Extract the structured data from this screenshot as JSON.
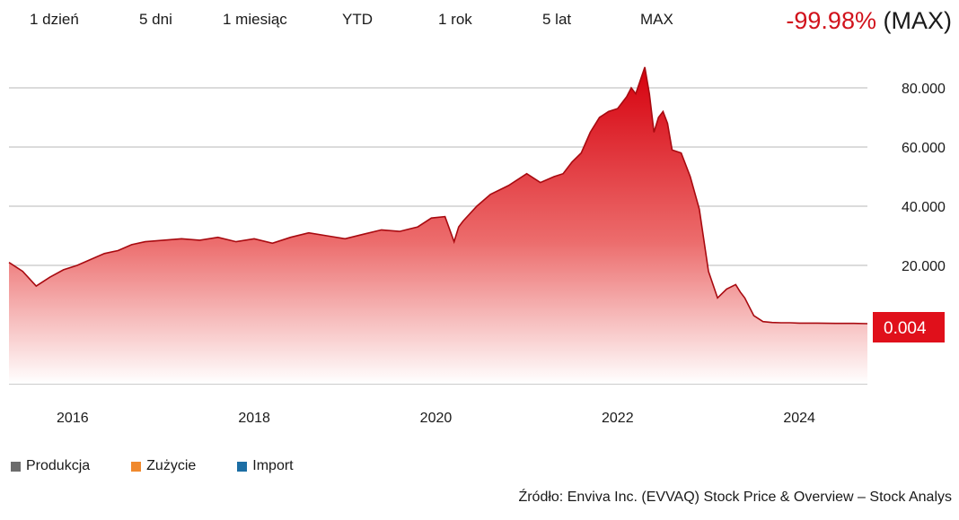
{
  "range_buttons": [
    "1 dzień",
    "5 dni",
    "1 miesiąc",
    "YTD",
    "1 rok",
    "5 lat",
    "MAX"
  ],
  "change": {
    "percent": "-99.98%",
    "period": "(MAX)"
  },
  "legend": [
    {
      "label": "Produkcja",
      "color": "#6d6d6d"
    },
    {
      "label": "Zużycie",
      "color": "#f0892e"
    },
    {
      "label": "Import",
      "color": "#1c6ea4"
    }
  ],
  "source": "Źródło: Enviva Inc. (EVVAQ) Stock Price & Overview – Stock Analys",
  "colors": {
    "accent": "#d1121c",
    "grid": "#cfcfcf"
  },
  "chart_data": {
    "type": "area",
    "x_ticks": [
      2016,
      2018,
      2020,
      2022,
      2024
    ],
    "x_tick_labels": [
      "2016",
      "2018",
      "2020",
      "2022",
      "2024"
    ],
    "y_ticks": [
      20000,
      40000,
      60000,
      80000
    ],
    "y_tick_labels": [
      "20.000",
      "40.000",
      "60.000",
      "80.000"
    ],
    "xlim": [
      2015.3,
      2024.75
    ],
    "ylim": [
      -20000,
      90000
    ],
    "last_value_label": "0.004",
    "last_value": 0,
    "grid": true,
    "series": [
      {
        "x": [
          2015.3,
          2015.45,
          2015.6,
          2015.75,
          2015.9,
          2016.05,
          2016.2,
          2016.35,
          2016.5,
          2016.65,
          2016.8,
          2017.0,
          2017.2,
          2017.4,
          2017.6,
          2017.8,
          2018.0,
          2018.2,
          2018.4,
          2018.6,
          2018.8,
          2019.0,
          2019.2,
          2019.4,
          2019.6,
          2019.8,
          2019.95,
          2020.1,
          2020.2,
          2020.25,
          2020.3,
          2020.45,
          2020.6,
          2020.8,
          2021.0,
          2021.15,
          2021.3,
          2021.4,
          2021.5,
          2021.6,
          2021.7,
          2021.8,
          2021.9,
          2022.0,
          2022.1,
          2022.15,
          2022.2,
          2022.3,
          2022.35,
          2022.4,
          2022.45,
          2022.5,
          2022.55,
          2022.6,
          2022.7,
          2022.8,
          2022.9,
          2023.0,
          2023.1,
          2023.2,
          2023.3,
          2023.35,
          2023.4,
          2023.5,
          2023.6,
          2023.7,
          2023.8,
          2023.9,
          2024.0,
          2024.2,
          2024.4,
          2024.6,
          2024.75
        ],
        "values": [
          21000,
          18000,
          13000,
          16000,
          18500,
          20000,
          22000,
          24000,
          25000,
          27000,
          28000,
          28500,
          29000,
          28500,
          29500,
          28000,
          29000,
          27500,
          29500,
          31000,
          30000,
          29000,
          30500,
          32000,
          31500,
          33000,
          36000,
          36500,
          28000,
          33000,
          35000,
          40000,
          44000,
          47000,
          51000,
          48000,
          50000,
          51000,
          55000,
          58000,
          65000,
          70000,
          72000,
          73000,
          77000,
          80000,
          78000,
          87000,
          78000,
          65000,
          70000,
          72000,
          68000,
          59000,
          58000,
          50000,
          39000,
          18000,
          9000,
          12000,
          13500,
          11000,
          9000,
          3000,
          1000,
          700,
          600,
          600,
          500,
          500,
          400,
          400,
          300
        ]
      }
    ]
  }
}
